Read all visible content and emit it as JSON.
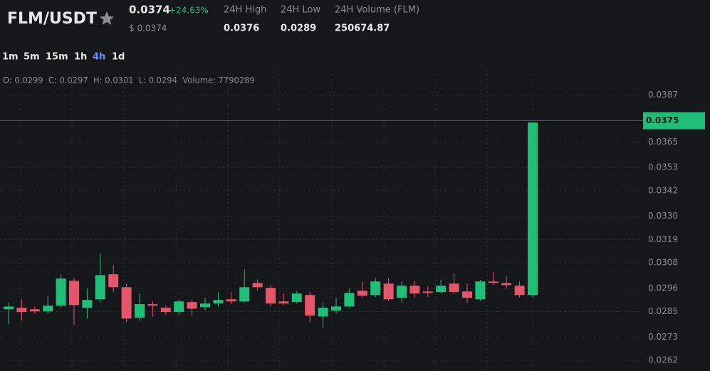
{
  "header": {
    "pair": "FLM/USDT",
    "price": "0.0374",
    "change": "+24.63%",
    "usd_price": "$ 0.0374",
    "stats": [
      {
        "label": "24H High",
        "value": "0.0376"
      },
      {
        "label": "24H Low",
        "value": "0.0289"
      },
      {
        "label": "24H Volume (FLM)",
        "value": "250674.87"
      }
    ]
  },
  "timeframes": [
    {
      "label": "1m"
    },
    {
      "label": "5m"
    },
    {
      "label": "15m"
    },
    {
      "label": "1h"
    },
    {
      "label": "4h",
      "active": true
    },
    {
      "label": "1d"
    }
  ],
  "ohlc_legend": "O: 0.0299  C: 0.0297  H: 0.0301  L: 0.0294  Volume: 7790289",
  "chart_data": {
    "type": "candlestick",
    "up_color": "#1fbf7a",
    "down_color": "#e5566a",
    "ylim": [
      0.0257,
      0.0399
    ],
    "yticks": [
      0.0387,
      0.0365,
      0.0353,
      0.0342,
      {
        "value": 0.033,
        "label": "0.0330"
      },
      0.0319,
      0.0308,
      0.0296,
      0.0285,
      0.0273,
      0.0262
    ],
    "grid": true,
    "last_price": 0.0375,
    "open": [
      0.02861,
      0.02868,
      0.02861,
      0.02851,
      0.02878,
      0.02995,
      0.02868,
      0.02908,
      0.03026,
      0.02965,
      0.02821,
      0.02885,
      0.02868,
      0.02848,
      0.02895,
      0.02871,
      0.02888,
      0.02908,
      0.02898,
      0.02985,
      0.02962,
      0.02898,
      0.02895,
      0.02928,
      0.02827,
      0.02854,
      0.02874,
      0.02948,
      0.02928,
      0.02982,
      0.02915,
      0.02972,
      0.02945,
      0.02942,
      0.02982,
      0.02945,
      0.02908,
      0.02992,
      0.02985,
      0.02972,
      0.02928
    ],
    "high": [
      0.02891,
      0.02908,
      0.02874,
      0.02925,
      0.03026,
      0.03009,
      0.02958,
      0.03126,
      0.03069,
      0.02982,
      0.02935,
      0.02898,
      0.02881,
      0.02908,
      0.02905,
      0.02915,
      0.02942,
      0.02942,
      0.03049,
      0.03002,
      0.02975,
      0.02935,
      0.02948,
      0.02942,
      0.02891,
      0.02915,
      0.02958,
      0.02992,
      0.03009,
      0.03009,
      0.02992,
      0.02995,
      0.02969,
      0.03002,
      0.03032,
      0.02982,
      0.02999,
      0.03036,
      0.03016,
      0.02992,
      0.03741
    ],
    "low": [
      0.0279,
      0.02807,
      0.02841,
      0.02841,
      0.02868,
      0.02787,
      0.02817,
      0.02891,
      0.02942,
      0.02801,
      0.02807,
      0.02827,
      0.02834,
      0.02834,
      0.02831,
      0.02854,
      0.02874,
      0.02885,
      0.02891,
      0.02948,
      0.02874,
      0.02881,
      0.02888,
      0.02801,
      0.02774,
      0.02841,
      0.02868,
      0.02915,
      0.02918,
      0.02901,
      0.02891,
      0.02915,
      0.02918,
      0.02935,
      0.02932,
      0.02891,
      0.02901,
      0.02975,
      0.02958,
      0.02915,
      0.02915
    ],
    "close": [
      0.02874,
      0.02848,
      0.02851,
      0.02878,
      0.03006,
      0.02881,
      0.02905,
      0.03022,
      0.02965,
      0.02817,
      0.02885,
      0.02878,
      0.02848,
      0.02898,
      0.02864,
      0.02888,
      0.02905,
      0.02898,
      0.02965,
      0.02965,
      0.02888,
      0.02888,
      0.02935,
      0.02831,
      0.02868,
      0.02874,
      0.02938,
      0.02925,
      0.02992,
      0.02908,
      0.02972,
      0.02935,
      0.02938,
      0.02972,
      0.02942,
      0.02915,
      0.02992,
      0.02985,
      0.02975,
      0.02928,
      0.03741
    ]
  }
}
